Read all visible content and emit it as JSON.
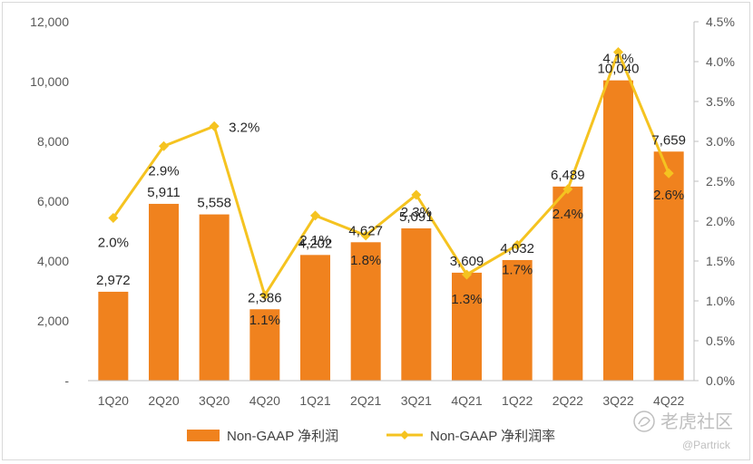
{
  "chart_data": {
    "type": "bar+line",
    "categories": [
      "1Q20",
      "2Q20",
      "3Q20",
      "4Q20",
      "1Q21",
      "2Q21",
      "3Q21",
      "4Q21",
      "1Q22",
      "2Q22",
      "3Q22",
      "4Q22"
    ],
    "series": [
      {
        "name": "Non-GAAP 净利润",
        "type": "bar",
        "axis": "left",
        "color": "#f0821e",
        "values": [
          2972,
          5911,
          5558,
          2386,
          4202,
          4627,
          5091,
          3609,
          4032,
          6489,
          10040,
          7659
        ],
        "labels": [
          "2,972",
          "5,911",
          "5,558",
          "2,386",
          "4,202",
          "4,627",
          "5,091",
          "3,609",
          "4,032",
          "6,489",
          "10,040",
          "7,659"
        ]
      },
      {
        "name": "Non-GAAP 净利润率",
        "type": "line",
        "axis": "right",
        "color": "#f5c320",
        "values": [
          2.04,
          2.94,
          3.19,
          1.07,
          2.07,
          1.82,
          2.33,
          1.33,
          1.7,
          2.4,
          4.12,
          2.6
        ],
        "labels": [
          "2.0%",
          "2.9%",
          "3.2%",
          "1.1%",
          "2.1%",
          "1.8%",
          "2.3%",
          "1.3%",
          "1.7%",
          "2.4%",
          "4.1%",
          "2.6%"
        ]
      }
    ],
    "y_left": {
      "min": 0,
      "max": 12000,
      "ticks": [
        0,
        2000,
        4000,
        6000,
        8000,
        10000,
        12000
      ],
      "tick_labels": [
        "-",
        "2,000",
        "4,000",
        "6,000",
        "8,000",
        "10,000",
        "12,000"
      ]
    },
    "y_right": {
      "min": 0,
      "max": 4.5,
      "ticks": [
        0,
        0.5,
        1,
        1.5,
        2,
        2.5,
        3,
        3.5,
        4,
        4.5
      ],
      "tick_labels": [
        "0.0%",
        "0.5%",
        "1.0%",
        "1.5%",
        "2.0%",
        "2.5%",
        "3.0%",
        "3.5%",
        "4.0%",
        "4.5%"
      ]
    },
    "legend_position": "bottom-center",
    "grid": false
  },
  "watermark": {
    "brand": "老虎社区",
    "handle": "@Partrick"
  }
}
